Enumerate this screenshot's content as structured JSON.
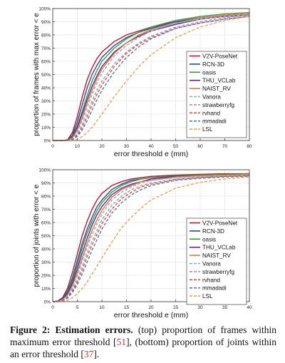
{
  "chart_data": [
    {
      "type": "line",
      "xlabel": "error threshold e (mm)",
      "ylabel": "proportion of frames with max error < e",
      "xlim": [
        0,
        80
      ],
      "ylim": [
        0,
        100
      ],
      "xticks": [
        0,
        10,
        20,
        30,
        40,
        50,
        60,
        70,
        80
      ],
      "yticks": [
        0,
        10,
        20,
        30,
        40,
        50,
        60,
        70,
        80,
        90,
        100
      ],
      "grid": true,
      "legend_position": "right",
      "series": [
        {
          "name": "V2V-PoseNet",
          "color": "#c4122f",
          "dash": "solid",
          "x": [
            0,
            4,
            6,
            8,
            10,
            12,
            14,
            16,
            18,
            20,
            25,
            30,
            35,
            40,
            50,
            60,
            70,
            80
          ],
          "y": [
            0,
            0,
            0.5,
            6,
            18,
            33,
            46,
            55,
            62,
            67,
            75,
            80,
            83,
            86,
            90,
            93,
            95,
            96
          ]
        },
        {
          "name": "RCN-3D",
          "color": "#1f4e9c",
          "dash": "solid",
          "x": [
            0,
            4,
            6,
            8,
            10,
            12,
            14,
            16,
            18,
            20,
            25,
            30,
            35,
            40,
            50,
            60,
            70,
            80
          ],
          "y": [
            0,
            0,
            0.3,
            4,
            14,
            27,
            40,
            50,
            57,
            63,
            72,
            78,
            82,
            85,
            90,
            93,
            95,
            96
          ]
        },
        {
          "name": "oasis",
          "color": "#3a9a3a",
          "dash": "solid",
          "x": [
            0,
            4,
            6,
            8,
            10,
            12,
            14,
            16,
            18,
            20,
            25,
            30,
            35,
            40,
            50,
            60,
            70,
            80
          ],
          "y": [
            0,
            0,
            0.2,
            3,
            11,
            22,
            34,
            45,
            53,
            60,
            70,
            77,
            82,
            86,
            91,
            94,
            96,
            97
          ]
        },
        {
          "name": "THU_VCLab",
          "color": "#6a1b9a",
          "dash": "solid",
          "x": [
            0,
            4,
            6,
            8,
            10,
            12,
            14,
            16,
            18,
            20,
            25,
            30,
            35,
            40,
            50,
            60,
            70,
            80
          ],
          "y": [
            0,
            0,
            0.2,
            2.5,
            10,
            20,
            31,
            41,
            49,
            56,
            67,
            74,
            79,
            83,
            88,
            92,
            94,
            95
          ]
        },
        {
          "name": "NAIST_RV",
          "color": "#e8772e",
          "dash": "solid",
          "x": [
            0,
            4,
            6,
            8,
            10,
            12,
            14,
            16,
            18,
            20,
            25,
            30,
            35,
            40,
            50,
            60,
            70,
            80
          ],
          "y": [
            0,
            0,
            0.1,
            2,
            8,
            17,
            28,
            38,
            47,
            54,
            66,
            74,
            80,
            84,
            89,
            93,
            95,
            96
          ]
        },
        {
          "name": "Vanora",
          "color": "#6fb5c8",
          "dash": "dash",
          "x": [
            0,
            4,
            6,
            8,
            10,
            12,
            14,
            16,
            18,
            20,
            25,
            30,
            35,
            40,
            50,
            60,
            70,
            80
          ],
          "y": [
            0,
            0,
            0.1,
            1.5,
            7,
            15,
            25,
            35,
            44,
            51,
            64,
            72,
            78,
            83,
            89,
            92,
            94,
            95
          ]
        },
        {
          "name": "strawberryfg",
          "color": "#a88fc8",
          "dash": "dash",
          "x": [
            0,
            4,
            6,
            8,
            10,
            12,
            14,
            16,
            18,
            20,
            25,
            30,
            35,
            40,
            50,
            60,
            70,
            80
          ],
          "y": [
            0,
            0,
            0.1,
            1.2,
            5,
            12,
            21,
            30,
            38,
            45,
            58,
            67,
            74,
            79,
            86,
            90,
            93,
            95
          ]
        },
        {
          "name": "rvhand",
          "color": "#d9542b",
          "dash": "dash",
          "x": [
            0,
            4,
            6,
            8,
            10,
            12,
            14,
            16,
            18,
            20,
            25,
            30,
            35,
            40,
            50,
            60,
            70,
            80
          ],
          "y": [
            0,
            0,
            0.1,
            1,
            4,
            10,
            18,
            27,
            35,
            42,
            56,
            66,
            73,
            78,
            85,
            89,
            92,
            94
          ]
        },
        {
          "name": "mmadadi",
          "color": "#4a7ab8",
          "dash": "dash",
          "x": [
            0,
            4,
            6,
            8,
            10,
            12,
            14,
            16,
            18,
            20,
            25,
            30,
            35,
            40,
            50,
            60,
            70,
            80
          ],
          "y": [
            0,
            0,
            0.1,
            0.8,
            3,
            8,
            15,
            23,
            31,
            38,
            52,
            63,
            71,
            77,
            85,
            89,
            92,
            94
          ]
        },
        {
          "name": "LSL",
          "color": "#f0a050",
          "dash": "dash",
          "x": [
            0,
            4,
            6,
            8,
            10,
            12,
            14,
            16,
            18,
            20,
            25,
            30,
            35,
            40,
            50,
            60,
            70,
            80
          ],
          "y": [
            0,
            0,
            0,
            0.3,
            1,
            3,
            6,
            10,
            15,
            20,
            33,
            45,
            56,
            65,
            78,
            86,
            91,
            94
          ]
        }
      ]
    },
    {
      "type": "line",
      "xlabel": "error threshold e (mm)",
      "ylabel": "proportion of joints with error < e",
      "xlim": [
        0,
        40
      ],
      "ylim": [
        0,
        100
      ],
      "xticks": [
        0,
        5,
        10,
        15,
        20,
        25,
        30,
        35,
        40
      ],
      "yticks": [
        0,
        10,
        20,
        30,
        40,
        50,
        60,
        70,
        80,
        90,
        100
      ],
      "grid": true,
      "legend_position": "right",
      "series": [
        {
          "name": "V2V-PoseNet",
          "color": "#c4122f",
          "dash": "solid",
          "x": [
            0,
            1,
            2,
            3,
            4,
            5,
            6,
            7,
            8,
            9,
            10,
            12,
            14,
            16,
            18,
            20,
            25,
            30,
            35,
            40
          ],
          "y": [
            0,
            0.5,
            3,
            10,
            22,
            36,
            50,
            61,
            70,
            77,
            82,
            88,
            91,
            93,
            94,
            95,
            96,
            96.5,
            97,
            97
          ]
        },
        {
          "name": "RCN-3D",
          "color": "#1f4e9c",
          "dash": "solid",
          "x": [
            0,
            1,
            2,
            3,
            4,
            5,
            6,
            7,
            8,
            9,
            10,
            12,
            14,
            16,
            18,
            20,
            25,
            30,
            35,
            40
          ],
          "y": [
            0,
            0.4,
            2.5,
            8,
            18,
            31,
            44,
            55,
            64,
            72,
            77,
            85,
            89,
            92,
            93,
            94,
            95.5,
            96,
            96.5,
            97
          ]
        },
        {
          "name": "oasis",
          "color": "#3a9a3a",
          "dash": "solid",
          "x": [
            0,
            1,
            2,
            3,
            4,
            5,
            6,
            7,
            8,
            9,
            10,
            12,
            14,
            16,
            18,
            20,
            25,
            30,
            35,
            40
          ],
          "y": [
            0,
            0.3,
            2,
            7,
            16,
            28,
            41,
            52,
            61,
            69,
            75,
            83,
            88,
            91,
            93,
            94,
            95.5,
            96,
            96.5,
            97
          ]
        },
        {
          "name": "THU_VCLab",
          "color": "#6a1b9a",
          "dash": "solid",
          "x": [
            0,
            1,
            2,
            3,
            4,
            5,
            6,
            7,
            8,
            9,
            10,
            12,
            14,
            16,
            18,
            20,
            25,
            30,
            35,
            40
          ],
          "y": [
            0,
            0.3,
            2,
            6,
            14,
            25,
            37,
            48,
            58,
            66,
            72,
            81,
            86,
            89,
            91,
            93,
            95,
            95.5,
            96,
            96.5
          ]
        },
        {
          "name": "NAIST_RV",
          "color": "#e8772e",
          "dash": "solid",
          "x": [
            0,
            1,
            2,
            3,
            4,
            5,
            6,
            7,
            8,
            9,
            10,
            12,
            14,
            16,
            18,
            20,
            25,
            30,
            35,
            40
          ],
          "y": [
            0,
            0.2,
            1.5,
            5,
            12,
            22,
            33,
            44,
            54,
            62,
            69,
            79,
            85,
            88,
            91,
            92,
            94.5,
            95.5,
            96,
            96.5
          ]
        },
        {
          "name": "Vanora",
          "color": "#6fb5c8",
          "dash": "dash",
          "x": [
            0,
            1,
            2,
            3,
            4,
            5,
            6,
            7,
            8,
            9,
            10,
            12,
            14,
            16,
            18,
            20,
            25,
            30,
            35,
            40
          ],
          "y": [
            0,
            0.2,
            1.3,
            4.5,
            11,
            20,
            31,
            41,
            51,
            59,
            66,
            77,
            83,
            87,
            90,
            92,
            94,
            95,
            95.5,
            96
          ]
        },
        {
          "name": "strawberryfg",
          "color": "#a88fc8",
          "dash": "dash",
          "x": [
            0,
            1,
            2,
            3,
            4,
            5,
            6,
            7,
            8,
            9,
            10,
            12,
            14,
            16,
            18,
            20,
            25,
            30,
            35,
            40
          ],
          "y": [
            0,
            0.2,
            1,
            3.5,
            9,
            17,
            27,
            37,
            46,
            54,
            62,
            73,
            80,
            85,
            88,
            90,
            93,
            94.5,
            95,
            95.5
          ]
        },
        {
          "name": "rvhand",
          "color": "#d9542b",
          "dash": "dash",
          "x": [
            0,
            1,
            2,
            3,
            4,
            5,
            6,
            7,
            8,
            9,
            10,
            12,
            14,
            16,
            18,
            20,
            25,
            30,
            35,
            40
          ],
          "y": [
            0,
            0.1,
            0.8,
            3,
            8,
            15,
            24,
            34,
            43,
            51,
            59,
            70,
            78,
            83,
            87,
            89,
            92.5,
            94,
            95,
            95.5
          ]
        },
        {
          "name": "mmadadi",
          "color": "#4a7ab8",
          "dash": "dash",
          "x": [
            0,
            1,
            2,
            3,
            4,
            5,
            6,
            7,
            8,
            9,
            10,
            12,
            14,
            16,
            18,
            20,
            25,
            30,
            35,
            40
          ],
          "y": [
            0,
            0.1,
            0.7,
            2.5,
            7,
            13,
            21,
            30,
            39,
            47,
            55,
            67,
            75,
            81,
            85,
            88,
            92,
            93.5,
            94.5,
            95
          ]
        },
        {
          "name": "LSL",
          "color": "#f0a050",
          "dash": "dash",
          "x": [
            0,
            1,
            2,
            3,
            4,
            5,
            6,
            7,
            8,
            9,
            10,
            12,
            14,
            16,
            18,
            20,
            25,
            30,
            35,
            40
          ],
          "y": [
            0,
            0,
            0.3,
            1,
            3,
            6,
            10,
            15,
            21,
            27,
            33,
            45,
            56,
            64,
            71,
            77,
            86,
            90.5,
            93,
            94.5
          ]
        }
      ]
    }
  ],
  "caption": {
    "label": "Figure 2:",
    "bold_text": "Estimation errors.",
    "part1": "(top) proportion of frames within maximum error threshold [",
    "ref1": "51",
    "part2": "], (bottom) proportion of joints within an error threshold [",
    "ref2": "37",
    "part3": "]."
  }
}
